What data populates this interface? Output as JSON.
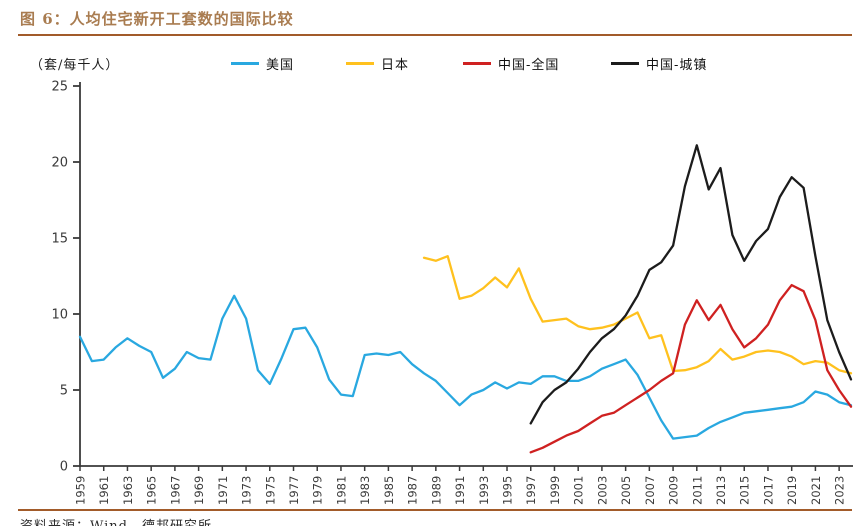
{
  "figure": {
    "title": "图 6：人均住宅新开工套数的国际比较",
    "unit_label": "（套/每千人）",
    "source": "资料来源：Wind，德邦研究所"
  },
  "colors": {
    "title_brown": "#A97C50",
    "rule_brown": "#A25B2A",
    "axis": "#3A3A3A",
    "tick_text": "#3A3A3A",
    "us_blue": "#29A8E0",
    "japan_yellow": "#FFC11E",
    "china_national_red": "#CF2121",
    "china_urban_black": "#1C1C1C"
  },
  "chart_data": {
    "type": "line",
    "title": "人均住宅新开工套数的国际比较",
    "unit": "套/每千人",
    "ylim": [
      0,
      25
    ],
    "ytick_step": 5,
    "x_range": [
      1959,
      2024
    ],
    "grid": false,
    "legend_position": "top",
    "xtick_labels": [
      "1959",
      "1961",
      "1963",
      "1965",
      "1967",
      "1969",
      "1971",
      "1973",
      "1975",
      "1977",
      "1979",
      "1981",
      "1983",
      "1985",
      "1987",
      "1989",
      "1991",
      "1993",
      "1995",
      "1997",
      "1999",
      "2001",
      "2003",
      "2005",
      "2007",
      "2009",
      "2011",
      "2013",
      "2015",
      "2017",
      "2019",
      "2021",
      "2023"
    ],
    "series": [
      {
        "key": "us",
        "name": "美国",
        "color": "#29A8E0",
        "start_year": 1959,
        "values": [
          8.5,
          6.9,
          7.0,
          7.8,
          8.4,
          7.9,
          7.5,
          5.8,
          6.4,
          7.5,
          7.1,
          7.0,
          9.7,
          11.2,
          9.7,
          6.3,
          5.4,
          7.1,
          9.0,
          9.1,
          7.8,
          5.7,
          4.7,
          4.6,
          7.3,
          7.4,
          7.3,
          7.5,
          6.7,
          6.1,
          5.6,
          4.8,
          4.0,
          4.7,
          5.0,
          5.5,
          5.1,
          5.5,
          5.4,
          5.9,
          5.9,
          5.6,
          5.6,
          5.9,
          6.4,
          6.7,
          7.0,
          6.0,
          4.5,
          3.0,
          1.8,
          1.9,
          2.0,
          2.5,
          2.9,
          3.2,
          3.5,
          3.6,
          3.7,
          3.8,
          3.9,
          4.2,
          4.9,
          4.7,
          4.2,
          4.0
        ]
      },
      {
        "key": "japan",
        "name": "日本",
        "color": "#FFC11E",
        "start_year": 1988,
        "values": [
          13.7,
          13.5,
          13.8,
          11.0,
          11.2,
          11.7,
          12.4,
          11.75,
          13.0,
          11.0,
          9.5,
          9.6,
          9.7,
          9.2,
          9.0,
          9.1,
          9.3,
          9.7,
          10.1,
          8.4,
          8.6,
          6.25,
          6.3,
          6.5,
          6.9,
          7.7,
          7.0,
          7.2,
          7.5,
          7.6,
          7.5,
          7.2,
          6.7,
          6.9,
          6.8,
          6.3,
          6.1
        ]
      },
      {
        "key": "china-national",
        "name": "中国-全国",
        "color": "#CF2121",
        "start_year": 1997,
        "values": [
          0.9,
          1.2,
          1.6,
          2.0,
          2.3,
          2.8,
          3.3,
          3.5,
          4.0,
          4.5,
          5.0,
          5.6,
          6.1,
          9.3,
          10.9,
          9.6,
          10.6,
          9.0,
          7.8,
          8.4,
          9.3,
          10.9,
          11.9,
          11.5,
          9.6,
          6.3,
          5.0,
          3.9
        ]
      },
      {
        "key": "china-urban",
        "name": "中国-城镇",
        "color": "#1C1C1C",
        "start_year": 1997,
        "values": [
          2.8,
          4.2,
          5.0,
          5.5,
          6.4,
          7.5,
          8.4,
          9.0,
          9.9,
          11.2,
          12.9,
          13.4,
          14.5,
          18.4,
          21.1,
          18.2,
          19.6,
          15.2,
          13.5,
          14.8,
          15.6,
          17.7,
          19.0,
          18.3,
          13.8,
          9.6,
          7.5,
          5.7
        ]
      }
    ]
  }
}
